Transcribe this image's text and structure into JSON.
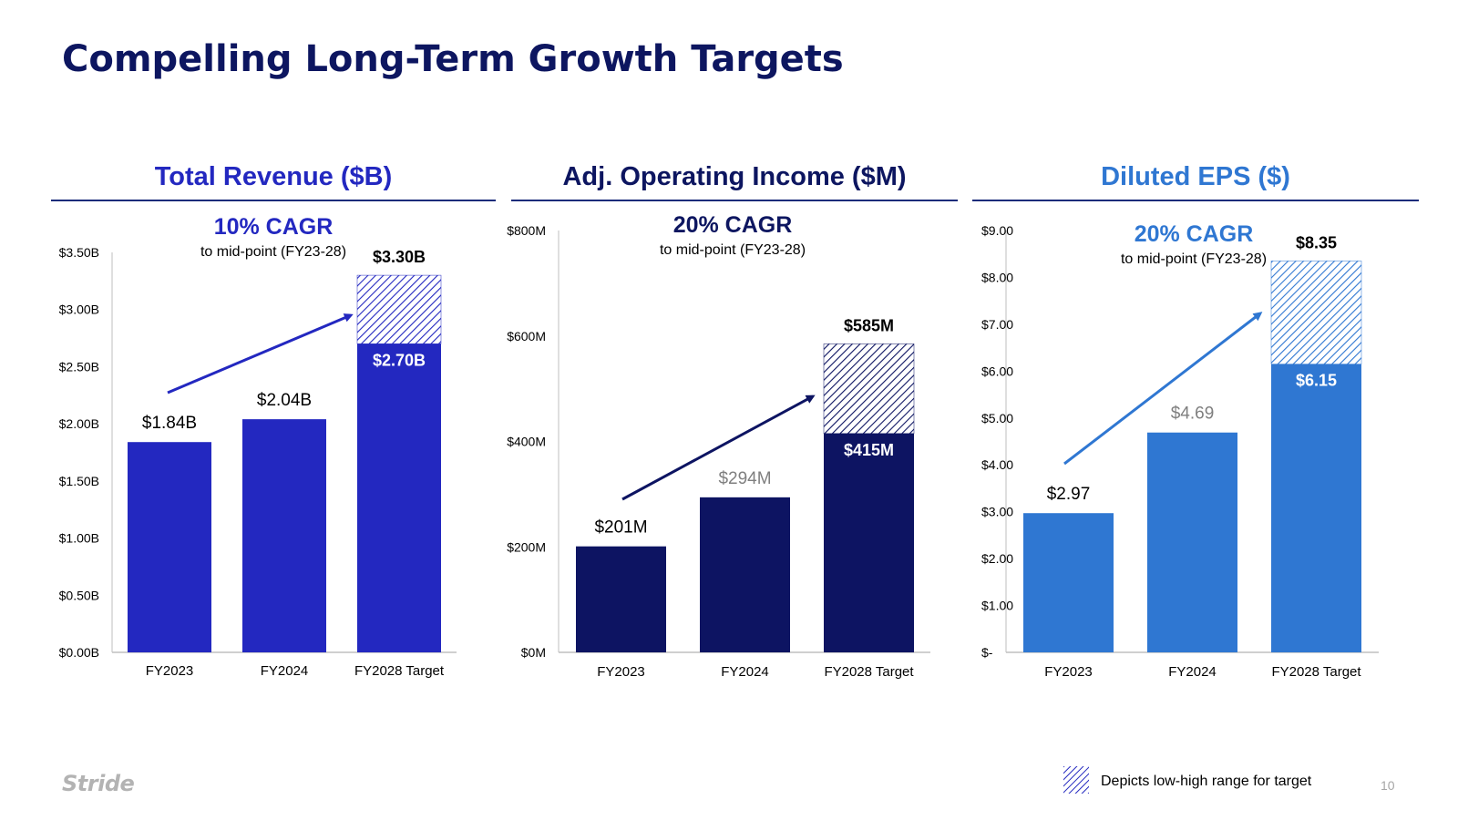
{
  "title": "Compelling Long-Term Growth Targets",
  "legend": {
    "label": "Depicts low-high range for target"
  },
  "footer": {
    "logo": "Stride",
    "page_number": "10"
  },
  "colors": {
    "title": "#0d1660",
    "rule": "#1b2c7a"
  },
  "chart_data": [
    {
      "id": "revenue",
      "type": "bar",
      "title": "Total Revenue ($B)",
      "title_color": "#2328c0",
      "cagr": "10% CAGR",
      "cagr_note": "to mid-point (FY23-28)",
      "categories": [
        "FY2023",
        "FY2024",
        "FY2028 Target"
      ],
      "values": [
        1.84,
        2.04,
        2.7
      ],
      "target_high": 3.3,
      "data_labels": [
        "$1.84B",
        "$2.04B",
        "$2.70B"
      ],
      "high_label": "$3.30B",
      "ylim": [
        0,
        3.5
      ],
      "yticks": [
        0,
        0.5,
        1.0,
        1.5,
        2.0,
        2.5,
        3.0,
        3.5
      ],
      "ytick_labels": [
        "$0.00B",
        "$0.50B",
        "$1.00B",
        "$1.50B",
        "$2.00B",
        "$2.50B",
        "$3.00B",
        "$3.50B"
      ],
      "bar_color": "#2328c0",
      "arrow_color": "#2328c0"
    },
    {
      "id": "operating-income",
      "type": "bar",
      "title": "Adj. Operating Income ($M)",
      "title_color": "#0d1660",
      "cagr": "20% CAGR",
      "cagr_note": "to mid-point (FY23-28)",
      "categories": [
        "FY2023",
        "FY2024",
        "FY2028 Target"
      ],
      "values": [
        201,
        294,
        415
      ],
      "target_high": 585,
      "data_labels": [
        "$201M",
        "$294M",
        "$415M"
      ],
      "high_label": "$585M",
      "ylim": [
        0,
        800
      ],
      "yticks": [
        0,
        200,
        400,
        600,
        800
      ],
      "ytick_labels": [
        "$0M",
        "$200M",
        "$400M",
        "$600M",
        "$800M"
      ],
      "bar_color": "#0d1462",
      "arrow_color": "#0d1462"
    },
    {
      "id": "eps",
      "type": "bar",
      "title": "Diluted EPS ($)",
      "title_color": "#2f77d2",
      "cagr": "20% CAGR",
      "cagr_note": "to mid-point (FY23-28)",
      "categories": [
        "FY2023",
        "FY2024",
        "FY2028 Target"
      ],
      "values": [
        2.97,
        4.69,
        6.15
      ],
      "target_high": 8.35,
      "data_labels": [
        "$2.97",
        "$4.69",
        "$6.15"
      ],
      "high_label": "$8.35",
      "ylim": [
        0,
        9
      ],
      "yticks": [
        0,
        1,
        2,
        3,
        4,
        5,
        6,
        7,
        8,
        9
      ],
      "ytick_labels": [
        "$-",
        "$1.00",
        "$2.00",
        "$3.00",
        "$4.00",
        "$5.00",
        "$6.00",
        "$7.00",
        "$8.00",
        "$9.00"
      ],
      "bar_color": "#2f77d2",
      "arrow_color": "#2f77d2"
    }
  ]
}
